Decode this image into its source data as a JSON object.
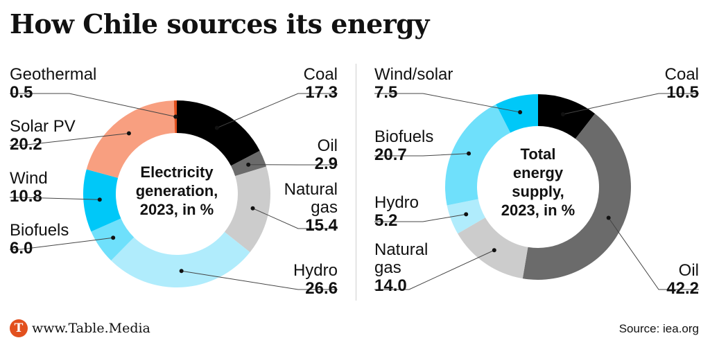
{
  "title": "How Chile sources its energy",
  "footer": {
    "brand": "www.Table.Media",
    "logo_letter": "T",
    "source": "Source: iea.org"
  },
  "chart_data": [
    {
      "type": "pie",
      "center_label": [
        "Electricity",
        "generation,",
        "2023, in %"
      ],
      "slices": [
        {
          "name": "Coal",
          "value": 17.3,
          "color": "#000000"
        },
        {
          "name": "Oil",
          "value": 2.9,
          "color": "#6b6b6b"
        },
        {
          "name": "Natural gas",
          "value": 15.4,
          "color": "#cccccc"
        },
        {
          "name": "Hydro",
          "value": 26.6,
          "color": "#b0ecfc"
        },
        {
          "name": "Biofuels",
          "value": 6.0,
          "color": "#6fe0fb"
        },
        {
          "name": "Wind",
          "value": 10.8,
          "color": "#00c8f8"
        },
        {
          "name": "Solar PV",
          "value": 20.2,
          "color": "#f89f80"
        },
        {
          "name": "Geothermal",
          "value": 0.5,
          "color": "#e2501e"
        }
      ]
    },
    {
      "type": "pie",
      "center_label": [
        "Total",
        "energy",
        "supply,",
        "2023, in %"
      ],
      "slices": [
        {
          "name": "Coal",
          "value": 10.5,
          "color": "#000000"
        },
        {
          "name": "Oil",
          "value": 42.2,
          "color": "#6b6b6b"
        },
        {
          "name": "Natural gas",
          "value": 14.0,
          "color": "#cccccc"
        },
        {
          "name": "Hydro",
          "value": 5.2,
          "color": "#b0ecfc"
        },
        {
          "name": "Biofuels",
          "value": 20.7,
          "color": "#6fe0fb"
        },
        {
          "name": "Wind/solar",
          "value": 7.5,
          "color": "#00c8f8"
        }
      ]
    }
  ]
}
